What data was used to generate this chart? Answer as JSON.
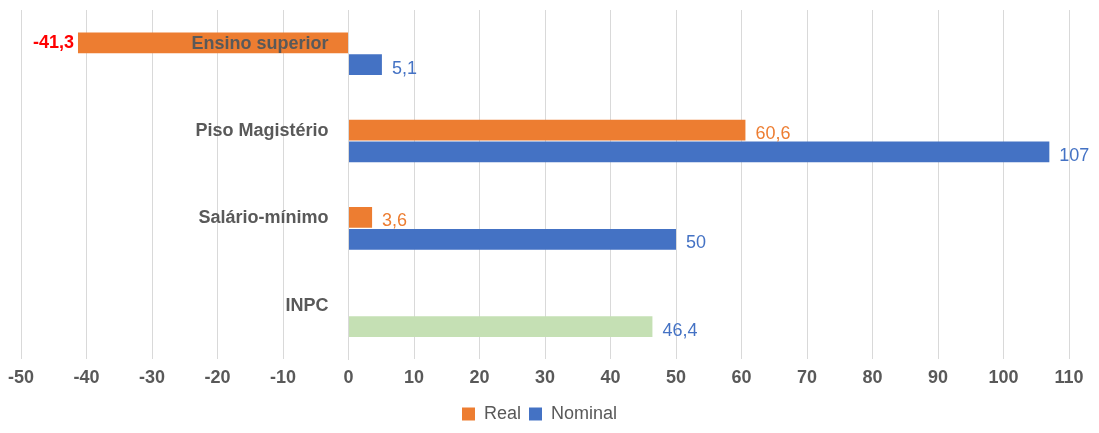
{
  "chart_data": {
    "type": "bar",
    "orientation": "horizontal",
    "categories": [
      "Ensino superior",
      "Piso Magistério",
      "Salário-mínimo",
      "INPC"
    ],
    "series": [
      {
        "name": "Real",
        "color": "#ed7d31",
        "values": [
          -41.3,
          60.6,
          3.6,
          null
        ],
        "value_labels": [
          "-41,3",
          "60,6",
          "3,6",
          null
        ]
      },
      {
        "name": "Nominal",
        "color": "#4472c4",
        "colors": [
          "#4472c4",
          "#4472c4",
          "#4472c4",
          "#c5e0b4"
        ],
        "values": [
          5.1,
          107,
          50,
          46.4
        ],
        "value_labels": [
          "5,1",
          "107",
          "50",
          "46,4"
        ]
      }
    ],
    "xlim": [
      -50,
      110
    ],
    "xticks": [
      -50,
      -40,
      -30,
      -20,
      -10,
      0,
      10,
      20,
      30,
      40,
      50,
      60,
      70,
      80,
      90,
      100,
      110
    ],
    "grid": "x",
    "legend": "bottom"
  }
}
